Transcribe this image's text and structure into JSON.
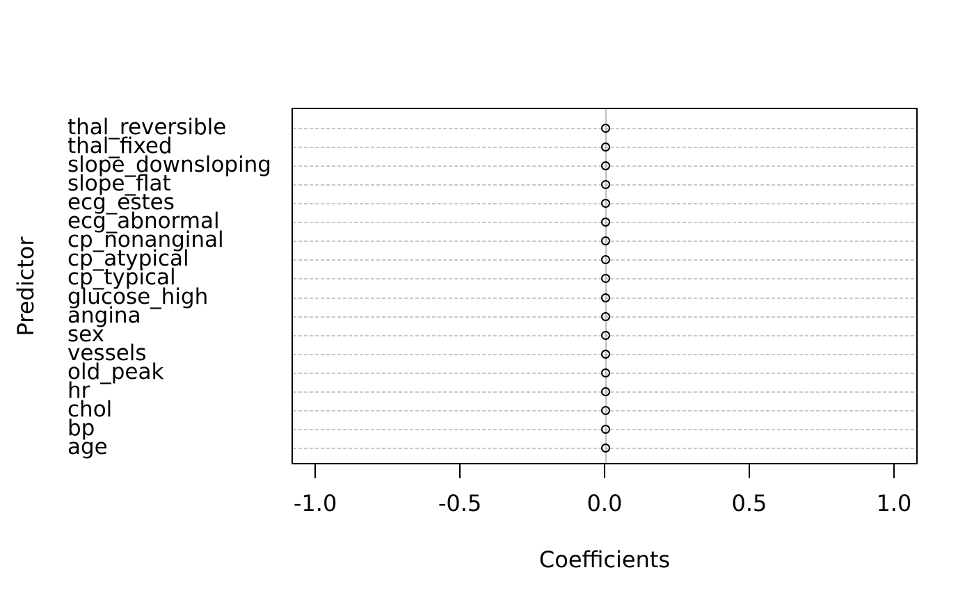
{
  "chart_data": {
    "type": "scatter",
    "variant": "horizontal-coefficient-dotplot",
    "title": "",
    "xlabel": "Coefficients",
    "ylabel": "Predictor",
    "categories": [
      "thal_reversible",
      "thal_fixed",
      "slope_downsloping",
      "slope_flat",
      "ecg_estes",
      "ecg_abnormal",
      "cp_nonanginal",
      "cp_atypical",
      "cp_typical",
      "glucose_high",
      "angina",
      "sex",
      "vessels",
      "old_peak",
      "hr",
      "chol",
      "bp",
      "age"
    ],
    "values": [
      0.0,
      0.0,
      0.0,
      0.0,
      0.0,
      0.0,
      0.0,
      0.0,
      0.0,
      0.0,
      0.0,
      0.0,
      0.0,
      0.0,
      0.0,
      0.0,
      0.0,
      0.0
    ],
    "xlim": [
      -1.082,
      1.082
    ],
    "x_ticks": [
      -1.0,
      -0.5,
      0.0,
      0.5,
      1.0
    ],
    "x_tick_labels": [
      "-1.0",
      "-0.5",
      "0.0",
      "0.5",
      "1.0"
    ],
    "grid": "horizontal-dashed",
    "reference_line_x": 0.0,
    "legend": "none",
    "marker": "open-circle",
    "colors": {
      "marker_stroke": "#000000",
      "grid_line": "#c8c8c8",
      "reference_line": "#bebebe",
      "axis": "#000000",
      "text": "#000000"
    }
  }
}
